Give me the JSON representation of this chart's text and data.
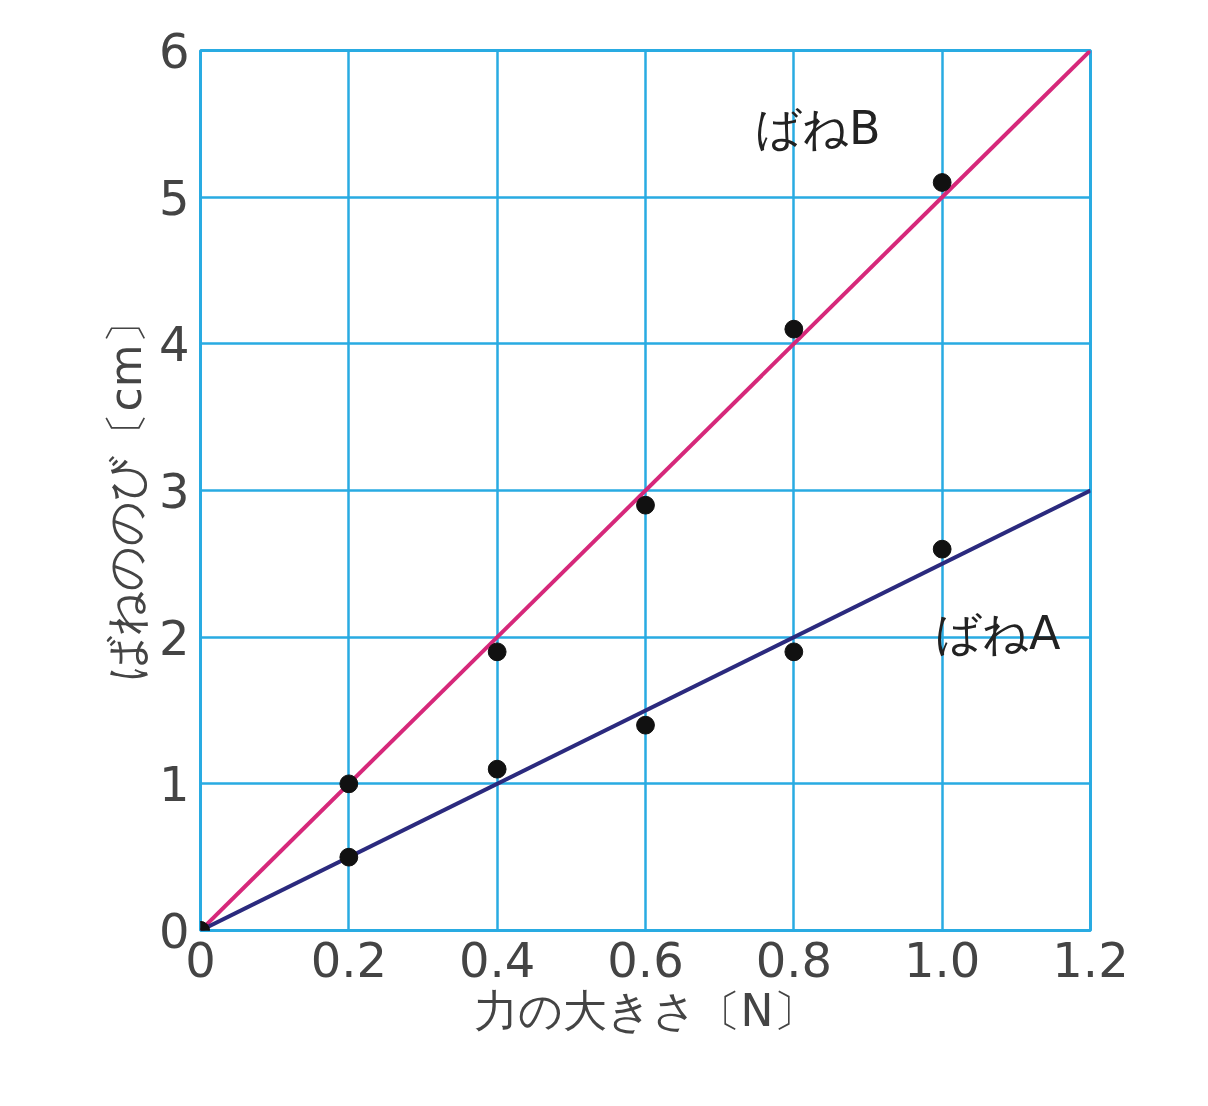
{
  "chart_data": {
    "type": "scatter",
    "xlabel": "力の大きさ〔N〕",
    "ylabel": "ばねののび〔cm〕",
    "xlim": [
      0,
      1.2
    ],
    "ylim": [
      0,
      6
    ],
    "xticks": [
      0,
      0.2,
      0.4,
      0.6,
      0.8,
      {
        "value": 1,
        "label": "1.0"
      },
      1.2
    ],
    "yticks": [
      0,
      1,
      2,
      3,
      4,
      5,
      6
    ],
    "grid": true,
    "marker": "circle",
    "series": [
      {
        "type": "line",
        "name": "ばねB",
        "color": "#d6287a",
        "x": [
          0,
          1.2
        ],
        "values": [
          0,
          6
        ],
        "marker": "none"
      },
      {
        "type": "line",
        "name": "ばねA",
        "color": "#2b2a7e",
        "x": [
          0,
          1.2
        ],
        "values": [
          0,
          3
        ],
        "marker": "none"
      },
      {
        "color": "#111111",
        "x": [
          0,
          0.2,
          0.4,
          0.6,
          0.8,
          1.0
        ],
        "values": [
          0,
          1.0,
          1.9,
          2.9,
          4.1,
          5.1
        ]
      },
      {
        "color": "#111111",
        "x": [
          0,
          0.2,
          0.4,
          0.6,
          0.8,
          1.0
        ],
        "values": [
          0,
          0.5,
          1.1,
          1.4,
          1.9,
          2.6
        ]
      }
    ]
  }
}
